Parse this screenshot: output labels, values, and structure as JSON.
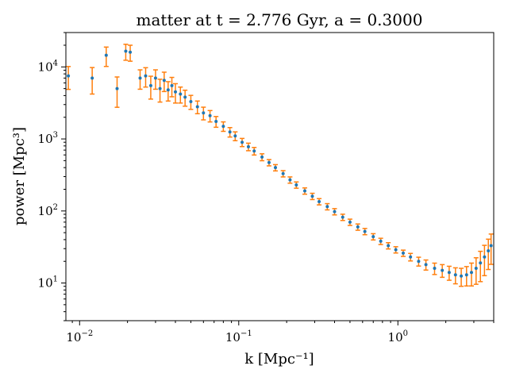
{
  "chart_data": {
    "type": "scatter",
    "title": "matter at t = 2.776 Gyr, a = 0.3000",
    "xlabel": "k [Mpc⁻¹]",
    "ylabel": "power [Mpc³]",
    "xscale": "log",
    "yscale": "log",
    "xlim": [
      0.0082,
      4.0
    ],
    "ylim": [
      3.0,
      30000
    ],
    "x_ticks": [
      {
        "value": 0.01,
        "label": "10",
        "exp": "−2"
      },
      {
        "value": 0.1,
        "label": "10",
        "exp": "−1"
      },
      {
        "value": 1,
        "label": "10",
        "exp": "0"
      }
    ],
    "y_ticks": [
      {
        "value": 10,
        "label": "10",
        "exp": "1"
      },
      {
        "value": 100,
        "label": "10",
        "exp": "2"
      },
      {
        "value": 1000,
        "label": "10",
        "exp": "3"
      },
      {
        "value": 10000,
        "label": "10",
        "exp": "4"
      }
    ],
    "grid": false,
    "legend": "none",
    "colors": {
      "points": "#1f77b4",
      "errorbars": "#ff7f0e"
    },
    "series": [
      {
        "x": [
          0.0085,
          0.012,
          0.0147,
          0.0172,
          0.0195,
          0.0208,
          0.024,
          0.026,
          0.028,
          0.03,
          0.032,
          0.034,
          0.036,
          0.038,
          0.04,
          0.043,
          0.046,
          0.05,
          0.055,
          0.06,
          0.066,
          0.072,
          0.08,
          0.088,
          0.095,
          0.105,
          0.115,
          0.125,
          0.14,
          0.155,
          0.17,
          0.19,
          0.21,
          0.23,
          0.26,
          0.29,
          0.32,
          0.36,
          0.4,
          0.45,
          0.5,
          0.56,
          0.62,
          0.7,
          0.78,
          0.87,
          0.97,
          1.08,
          1.2,
          1.35,
          1.5,
          1.7,
          1.9,
          2.1,
          2.3,
          2.5,
          2.7,
          2.9,
          3.1,
          3.3,
          3.5,
          3.7,
          3.85
        ],
        "y": [
          7500,
          7000,
          14500,
          5000,
          16500,
          16000,
          7000,
          7500,
          5500,
          7000,
          5000,
          6500,
          4800,
          5500,
          4500,
          4200,
          3800,
          3300,
          2800,
          2300,
          2100,
          1750,
          1500,
          1250,
          1100,
          900,
          780,
          680,
          560,
          470,
          400,
          330,
          270,
          230,
          190,
          160,
          135,
          115,
          98,
          82,
          70,
          60,
          52,
          44,
          38,
          33,
          29,
          26,
          23,
          20,
          18,
          16,
          15,
          14,
          13,
          12.5,
          13,
          14,
          16,
          19,
          23,
          28,
          33
        ],
        "yerr_frac": [
          0.35,
          0.4,
          0.3,
          0.45,
          0.25,
          0.25,
          0.3,
          0.3,
          0.35,
          0.3,
          0.35,
          0.3,
          0.3,
          0.3,
          0.3,
          0.25,
          0.25,
          0.22,
          0.2,
          0.2,
          0.18,
          0.17,
          0.15,
          0.15,
          0.14,
          0.13,
          0.12,
          0.12,
          0.11,
          0.1,
          0.1,
          0.1,
          0.1,
          0.1,
          0.1,
          0.1,
          0.1,
          0.1,
          0.1,
          0.1,
          0.1,
          0.1,
          0.1,
          0.1,
          0.1,
          0.1,
          0.1,
          0.1,
          0.12,
          0.14,
          0.16,
          0.18,
          0.2,
          0.22,
          0.25,
          0.28,
          0.3,
          0.35,
          0.4,
          0.45,
          0.45,
          0.45,
          0.45
        ]
      }
    ]
  }
}
